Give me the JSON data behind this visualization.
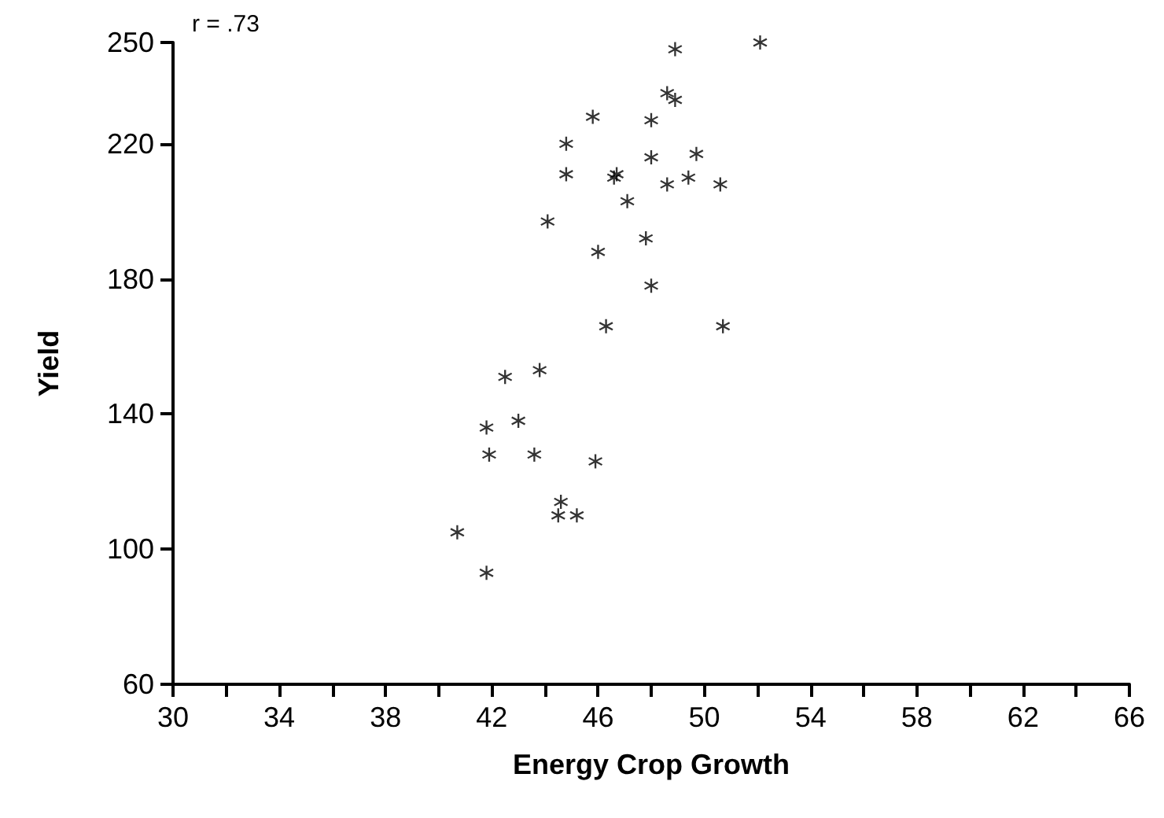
{
  "chart_data": {
    "type": "scatter",
    "xlabel": "Energy Crop Growth",
    "ylabel": "Yield",
    "annotations": [
      "r = .73"
    ],
    "xlim": [
      30,
      66
    ],
    "xticks": [
      30,
      {
        "value": 32,
        "label": null
      },
      34,
      {
        "value": 36,
        "label": null
      },
      38,
      {
        "value": 40,
        "label": null
      },
      42,
      {
        "value": 44,
        "label": null
      },
      46,
      {
        "value": 48,
        "label": null
      },
      50,
      {
        "value": 52,
        "label": null
      },
      54,
      {
        "value": 56,
        "label": null
      },
      58,
      {
        "value": 60,
        "label": null
      },
      62,
      {
        "value": 64,
        "label": null
      },
      66
    ],
    "ylim": [
      60,
      250
    ],
    "yticks": [
      60,
      100,
      140,
      180,
      220,
      250
    ],
    "marker": "star",
    "series": [
      {
        "color": "#000000",
        "x": [
          48.9,
          52.1,
          48.6,
          48.9,
          45.8,
          48.0,
          44.8,
          48.0,
          49.7,
          44.8,
          46.7,
          46.6,
          49.4,
          48.6,
          50.6,
          47.1,
          44.1,
          47.8,
          46.0,
          48.0,
          46.3,
          50.7,
          43.8,
          42.5,
          43.0,
          41.8,
          41.9,
          43.6,
          45.9,
          44.6,
          44.5,
          45.2,
          40.7,
          41.8
        ],
        "values": [
          248,
          250,
          235,
          233,
          228,
          227,
          220,
          216,
          217,
          211,
          211,
          210,
          210,
          208,
          208,
          203,
          197,
          192,
          188,
          178,
          166,
          166,
          153,
          151,
          138,
          136,
          128,
          128,
          126,
          114,
          110,
          110,
          105,
          93
        ]
      }
    ]
  }
}
